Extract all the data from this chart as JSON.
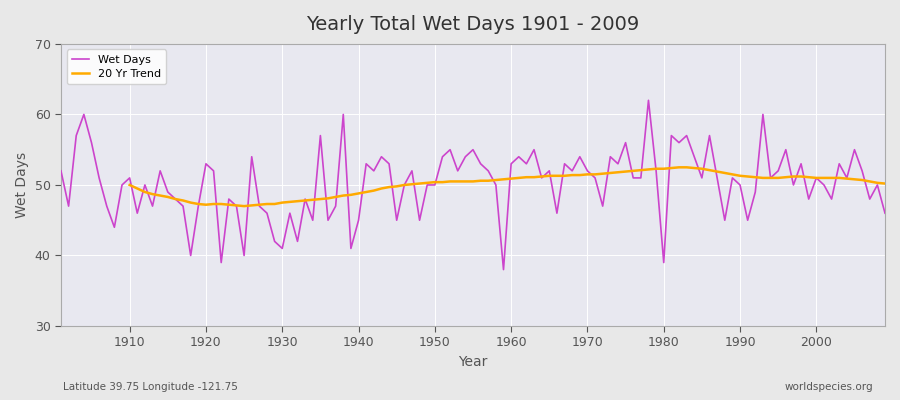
{
  "title": "Yearly Total Wet Days 1901 - 2009",
  "xlabel": "Year",
  "ylabel": "Wet Days",
  "footer_left": "Latitude 39.75 Longitude -121.75",
  "footer_right": "worldspecies.org",
  "legend_wet_days": "Wet Days",
  "legend_trend": "20 Yr Trend",
  "wet_days_color": "#cc44cc",
  "trend_color": "#ffaa00",
  "background_color": "#e8e8e8",
  "plot_bg_color": "#e8e8f0",
  "ylim": [
    30,
    70
  ],
  "xlim": [
    1901,
    2009
  ],
  "yticks": [
    30,
    40,
    50,
    60,
    70
  ],
  "xticks": [
    1910,
    1920,
    1930,
    1940,
    1950,
    1960,
    1970,
    1980,
    1990,
    2000
  ],
  "years": [
    1901,
    1902,
    1903,
    1904,
    1905,
    1906,
    1907,
    1908,
    1909,
    1910,
    1911,
    1912,
    1913,
    1914,
    1915,
    1916,
    1917,
    1918,
    1919,
    1920,
    1921,
    1922,
    1923,
    1924,
    1925,
    1926,
    1927,
    1928,
    1929,
    1930,
    1931,
    1932,
    1933,
    1934,
    1935,
    1936,
    1937,
    1938,
    1939,
    1940,
    1941,
    1942,
    1943,
    1944,
    1945,
    1946,
    1947,
    1948,
    1949,
    1950,
    1951,
    1952,
    1953,
    1954,
    1955,
    1956,
    1957,
    1958,
    1959,
    1960,
    1961,
    1962,
    1963,
    1964,
    1965,
    1966,
    1967,
    1968,
    1969,
    1970,
    1971,
    1972,
    1973,
    1974,
    1975,
    1976,
    1977,
    1978,
    1979,
    1980,
    1981,
    1982,
    1983,
    1984,
    1985,
    1986,
    1987,
    1988,
    1989,
    1990,
    1991,
    1992,
    1993,
    1994,
    1995,
    1996,
    1997,
    1998,
    1999,
    2000,
    2001,
    2002,
    2003,
    2004,
    2005,
    2006,
    2007,
    2008,
    2009
  ],
  "wet_days": [
    52,
    47,
    57,
    60,
    56,
    51,
    47,
    44,
    50,
    51,
    46,
    50,
    47,
    52,
    49,
    48,
    47,
    40,
    47,
    53,
    52,
    39,
    48,
    47,
    40,
    54,
    47,
    46,
    42,
    41,
    46,
    42,
    48,
    45,
    57,
    45,
    47,
    60,
    41,
    45,
    53,
    52,
    54,
    53,
    45,
    50,
    52,
    45,
    50,
    50,
    54,
    55,
    52,
    54,
    55,
    53,
    52,
    50,
    38,
    53,
    54,
    53,
    55,
    51,
    52,
    46,
    53,
    52,
    54,
    52,
    51,
    47,
    54,
    53,
    56,
    51,
    51,
    62,
    52,
    39,
    57,
    56,
    57,
    54,
    51,
    57,
    51,
    45,
    51,
    50,
    45,
    49,
    60,
    51,
    52,
    55,
    50,
    53,
    48,
    51,
    50,
    48,
    53,
    51,
    55,
    52,
    48,
    50,
    46
  ],
  "trend_years": [
    1910,
    1911,
    1912,
    1913,
    1914,
    1915,
    1916,
    1917,
    1918,
    1919,
    1920,
    1921,
    1922,
    1923,
    1924,
    1925,
    1926,
    1927,
    1928,
    1929,
    1930,
    1931,
    1932,
    1933,
    1934,
    1935,
    1936,
    1937,
    1938,
    1939,
    1940,
    1941,
    1942,
    1943,
    1944,
    1945,
    1946,
    1947,
    1948,
    1949,
    1950,
    1951,
    1952,
    1953,
    1954,
    1955,
    1956,
    1957,
    1958,
    1959,
    1960,
    1961,
    1962,
    1963,
    1964,
    1965,
    1966,
    1967,
    1968,
    1969,
    1970,
    1971,
    1972,
    1973,
    1974,
    1975,
    1976,
    1977,
    1978,
    1979,
    1980,
    1981,
    1982,
    1983,
    1984,
    1985,
    1986,
    1987,
    1988,
    1989,
    1990,
    1991,
    1992,
    1993,
    1994,
    1995,
    1996,
    1997,
    1998,
    1999,
    2000,
    2001,
    2002,
    2003,
    2004,
    2005,
    2006,
    2007,
    2008,
    2009
  ],
  "trend_values": [
    50.0,
    49.5,
    49.0,
    48.7,
    48.5,
    48.3,
    48.0,
    47.8,
    47.5,
    47.3,
    47.2,
    47.3,
    47.3,
    47.2,
    47.1,
    47.0,
    47.1,
    47.2,
    47.3,
    47.3,
    47.5,
    47.6,
    47.7,
    47.8,
    47.9,
    48.0,
    48.1,
    48.3,
    48.5,
    48.6,
    48.8,
    49.0,
    49.2,
    49.5,
    49.7,
    49.8,
    50.0,
    50.1,
    50.2,
    50.3,
    50.4,
    50.4,
    50.5,
    50.5,
    50.5,
    50.5,
    50.6,
    50.6,
    50.7,
    50.8,
    50.9,
    51.0,
    51.1,
    51.1,
    51.2,
    51.3,
    51.3,
    51.3,
    51.4,
    51.4,
    51.5,
    51.5,
    51.6,
    51.7,
    51.8,
    51.9,
    52.0,
    52.1,
    52.2,
    52.3,
    52.3,
    52.4,
    52.5,
    52.5,
    52.4,
    52.3,
    52.1,
    51.9,
    51.7,
    51.5,
    51.3,
    51.2,
    51.1,
    51.0,
    51.0,
    51.0,
    51.1,
    51.2,
    51.2,
    51.1,
    51.0,
    51.0,
    51.0,
    51.0,
    50.9,
    50.8,
    50.7,
    50.5,
    50.3,
    50.2
  ]
}
